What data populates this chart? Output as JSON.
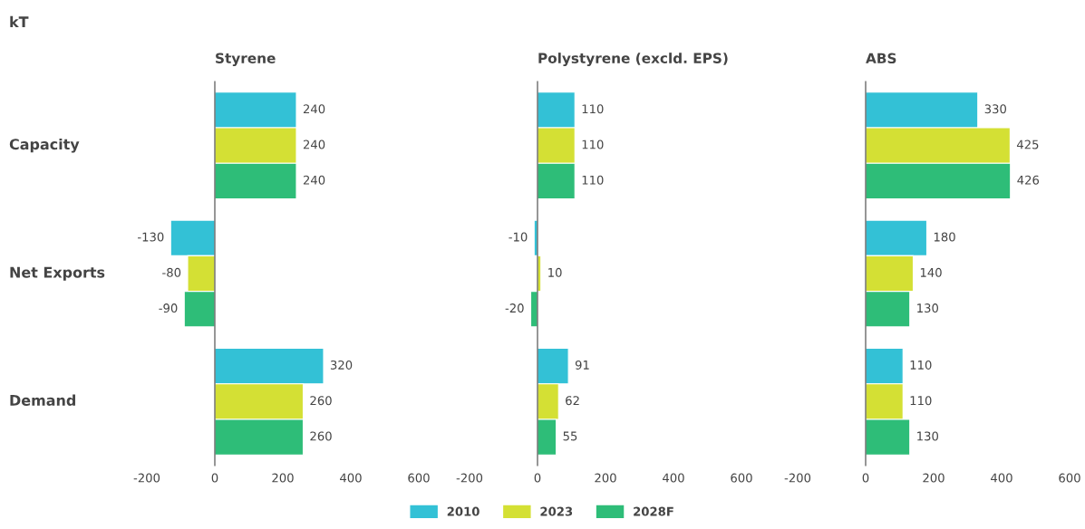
{
  "chart_data": [
    {
      "type": "bar",
      "orientation": "horizontal",
      "title": "Styrene",
      "annotations": [
        "kT"
      ],
      "categories": [
        "Capacity",
        "Net Exports",
        "Demand"
      ],
      "xlim": [
        -200,
        600
      ],
      "xticks": [
        -200,
        0,
        200,
        400,
        600
      ],
      "data_labels": true,
      "legend": "bottom",
      "series": [
        {
          "name": "2010",
          "color": "#33c1d6",
          "values": [
            240,
            -130,
            320
          ]
        },
        {
          "name": "2023",
          "color": "#d4e034",
          "values": [
            240,
            -80,
            260
          ]
        },
        {
          "name": "2028F",
          "color": "#2ebd78",
          "values": [
            240,
            -90,
            260
          ]
        }
      ]
    },
    {
      "type": "bar",
      "orientation": "horizontal",
      "title": "Polystyrene (excld. EPS)",
      "categories": [
        null,
        null,
        null
      ],
      "xlim": [
        -200,
        600
      ],
      "xticks": [
        -200,
        0,
        200,
        400,
        600
      ],
      "data_labels": true,
      "series": [
        {
          "color": "#33c1d6",
          "values": [
            110,
            -10,
            91
          ]
        },
        {
          "color": "#d4e034",
          "values": [
            110,
            10,
            62
          ]
        },
        {
          "color": "#2ebd78",
          "values": [
            110,
            -20,
            55
          ]
        }
      ]
    },
    {
      "type": "bar",
      "orientation": "horizontal",
      "title": "ABS",
      "categories": [
        null,
        null,
        null
      ],
      "xlim": [
        -200,
        600
      ],
      "xticks": [
        -200,
        0,
        200,
        400,
        600
      ],
      "data_labels": true,
      "series": [
        {
          "color": "#33c1d6",
          "values": [
            330,
            180,
            110
          ]
        },
        {
          "color": "#d4e034",
          "values": [
            425,
            140,
            110
          ]
        },
        {
          "color": "#2ebd78",
          "values": [
            426,
            130,
            130
          ]
        }
      ]
    }
  ]
}
